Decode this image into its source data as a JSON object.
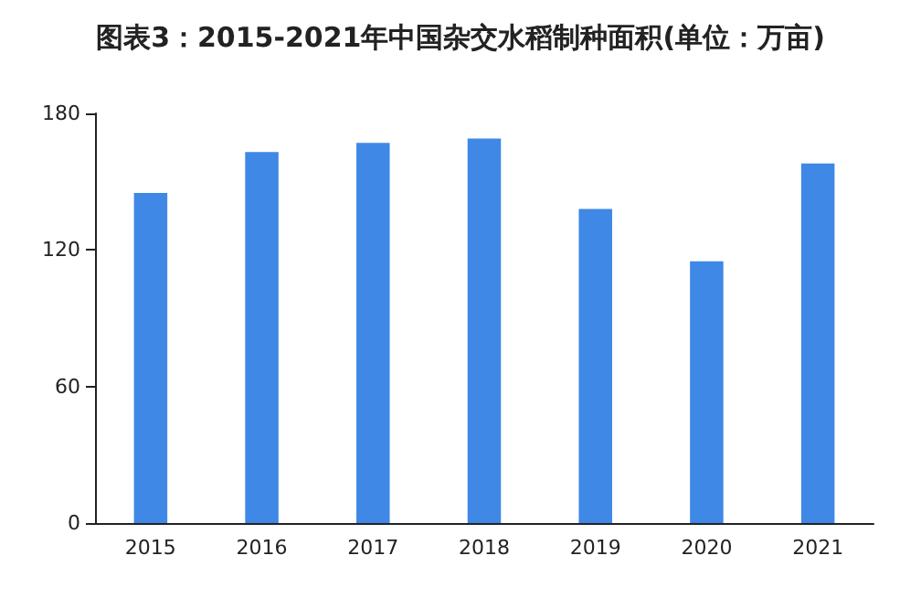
{
  "chart_data": {
    "type": "bar",
    "title": "图表3：2015-2021年中国杂交水稻制种面积(单位：万亩)",
    "categories": [
      "2015",
      "2016",
      "2017",
      "2018",
      "2019",
      "2020",
      "2021"
    ],
    "values": [
      145,
      163,
      167,
      169,
      138,
      115,
      158
    ],
    "color": "#3f88e5",
    "ylim": [
      0,
      180
    ],
    "yticks": [
      0,
      60,
      120,
      180
    ],
    "grid": false
  }
}
